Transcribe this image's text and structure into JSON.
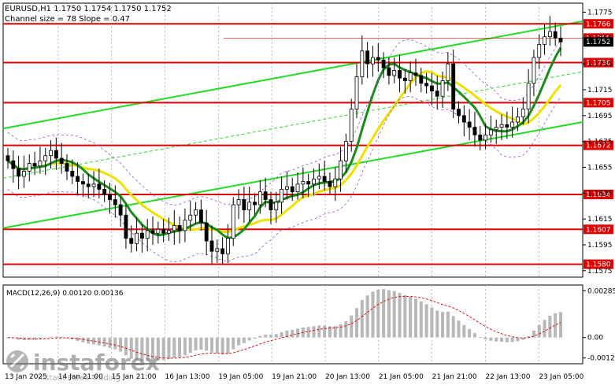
{
  "header": {
    "symbol_line": "EURUSD,H1  1.1750 1.1754 1.1750 1.1752",
    "channel_line": "Channel size = 78 Slope = 0.47"
  },
  "macd": {
    "label": "MACD(12,26,9) 0.00120 0.00136",
    "axis_labels": [
      "0.00285",
      "0.00",
      "-0.00125"
    ]
  },
  "watermark": {
    "brand": "instaforex",
    "tagline": "Instant Forex Trading"
  },
  "chart_data": {
    "type": "candlestick",
    "instrument": "EURUSD",
    "timeframe": "H1",
    "ohlc_last": {
      "open": 1.175,
      "high": 1.1754,
      "low": 1.175,
      "close": 1.1752
    },
    "price_ylim": [
      1.157,
      1.1782
    ],
    "price_ticks": [
      1.1775,
      1.1755,
      1.1735,
      1.1715,
      1.1695,
      1.1675,
      1.1655,
      1.1635,
      1.1615,
      1.1595,
      1.1575
    ],
    "x_tick_labels": [
      "13 Jan 2025",
      "14 Jan 21:00",
      "15 Jan 21:00",
      "16 Jan 13:00",
      "19 Jan 05:00",
      "19 Jan 21:00",
      "20 Jan 13:00",
      "21 Jan 05:00",
      "21 Jan 21:00",
      "22 Jan 13:00",
      "23 Jan 05:00"
    ],
    "horizontal_levels": [
      {
        "price": 1.1766,
        "label": "1.1766"
      },
      {
        "price": 1.1736,
        "label": "1.1736"
      },
      {
        "price": 1.1705,
        "label": "1.1705"
      },
      {
        "price": 1.1672,
        "label": "1.1672"
      },
      {
        "price": 1.1634,
        "label": "1.1634"
      },
      {
        "price": 1.1607,
        "label": "1.1607"
      },
      {
        "price": 1.158,
        "label": "1.1580"
      }
    ],
    "current_price": {
      "price": 1.1752,
      "label": "1.1752"
    },
    "axis_extra_label": {
      "price": 1.1755,
      "label": "1.1755"
    },
    "close_series": [
      1.166,
      1.1654,
      1.1648,
      1.1652,
      1.1658,
      1.1656,
      1.166,
      1.1664,
      1.1668,
      1.1662,
      1.1658,
      1.1652,
      1.1648,
      1.1644,
      1.1642,
      1.164,
      1.1642,
      1.1638,
      1.1634,
      1.163,
      1.1626,
      1.1618,
      1.16,
      1.1596,
      1.1604,
      1.16,
      1.1606,
      1.1604,
      1.1607,
      1.1604,
      1.1606,
      1.161,
      1.1606,
      1.1614,
      1.1618,
      1.1622,
      1.1612,
      1.1598,
      1.159,
      1.1592,
      1.1588,
      1.16,
      1.1626,
      1.163,
      1.1622,
      1.1628,
      1.1626,
      1.1636,
      1.163,
      1.1622,
      1.1628,
      1.1638,
      1.164,
      1.1636,
      1.1642,
      1.1644,
      1.1642,
      1.1646,
      1.1648,
      1.1644,
      1.164,
      1.1646,
      1.166,
      1.1675,
      1.17,
      1.1725,
      1.1745,
      1.1735,
      1.174,
      1.1738,
      1.1732,
      1.1726,
      1.173,
      1.1724,
      1.1722,
      1.1728,
      1.1726,
      1.172,
      1.1718,
      1.1714,
      1.171,
      1.1722,
      1.1735,
      1.17,
      1.1695,
      1.169,
      1.1686,
      1.168,
      1.1676,
      1.168,
      1.1684,
      1.1686,
      1.1688,
      1.1686,
      1.169,
      1.1694,
      1.17,
      1.172,
      1.174,
      1.175,
      1.1756,
      1.176,
      1.1755,
      1.1752
    ],
    "channel_lines": [
      {
        "name": "upper",
        "start": 1.1685,
        "end": 1.1768
      },
      {
        "name": "lower",
        "start": 1.1608,
        "end": 1.169
      }
    ]
  }
}
